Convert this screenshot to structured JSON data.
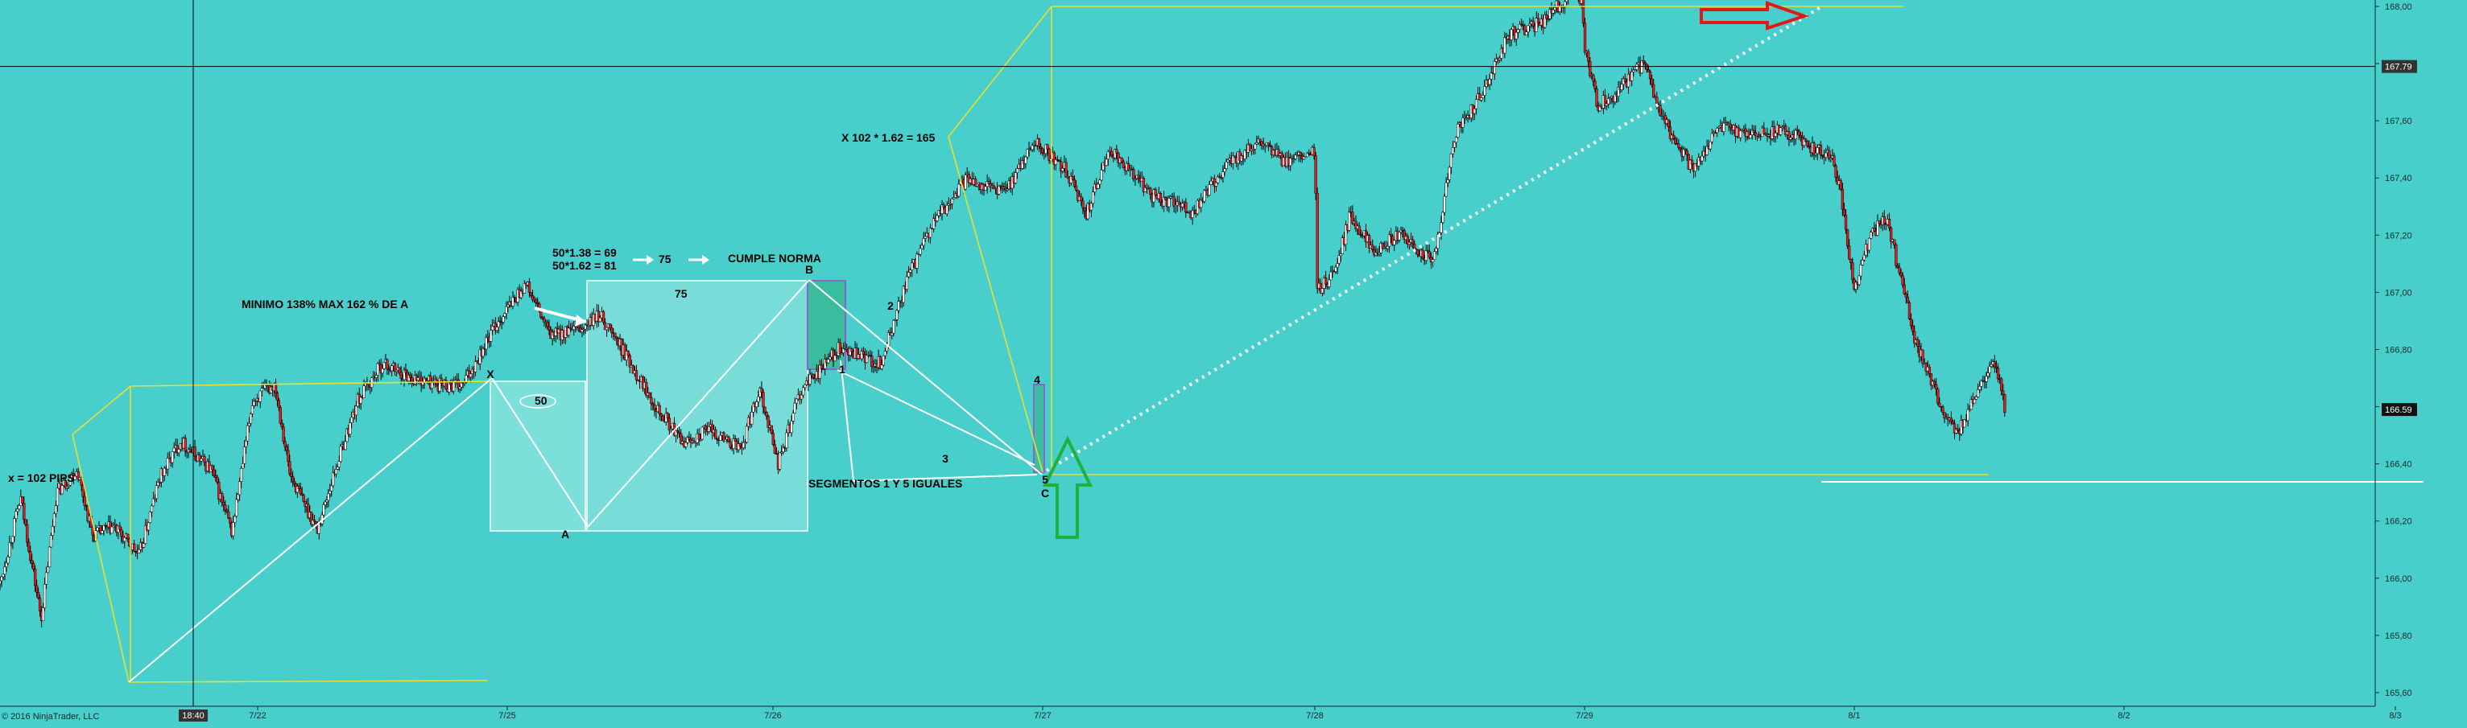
{
  "app": {
    "copyright": "© 2016 NinjaTrader, LLC",
    "crosshair_time": "18:40",
    "crosshair_price": "167.79",
    "last_price": "166.59"
  },
  "colors": {
    "background": "#48cfcc",
    "candle_up": "#ffffff",
    "candle_down": "#e02020",
    "candle_wick": "#000000",
    "annotation_line": "#ffffff",
    "fib_line": "#e8e030",
    "rect_fill": "#a8ece6",
    "rect_highlight": "#2fae7a",
    "rect_purple": "#8866cc",
    "arrow_green": "#1fb040",
    "arrow_red": "#e01818",
    "crosshair": "#000000",
    "axis_text": "#0a2a2a"
  },
  "chart_data": {
    "type": "candlestick",
    "title": "",
    "xlabel": "",
    "ylabel": "",
    "ylim": [
      165.59,
      168.08
    ],
    "y_ticks": [
      "168,00",
      "167,80",
      "167,60",
      "167,40",
      "167,20",
      "167,00",
      "166,80",
      "166,60",
      "166,40",
      "166,20",
      "166,00",
      "165,80",
      "165,60"
    ],
    "x_ticks": [
      "7/22",
      "7/25",
      "7/26",
      "7/27",
      "7/28",
      "7/29",
      "8/1",
      "8/2",
      "8/3"
    ],
    "grid": false,
    "price_path": [
      {
        "x": 0.0,
        "y": 165.98
      },
      {
        "x": 0.08,
        "y": 166.28
      },
      {
        "x": 0.16,
        "y": 165.86
      },
      {
        "x": 0.22,
        "y": 166.3
      },
      {
        "x": 0.3,
        "y": 166.38
      },
      {
        "x": 0.36,
        "y": 166.15
      },
      {
        "x": 0.44,
        "y": 166.18
      },
      {
        "x": 0.54,
        "y": 166.08
      },
      {
        "x": 0.62,
        "y": 166.35
      },
      {
        "x": 0.7,
        "y": 166.48
      },
      {
        "x": 0.82,
        "y": 166.38
      },
      {
        "x": 0.9,
        "y": 166.16
      },
      {
        "x": 0.98,
        "y": 166.62
      },
      {
        "x": 1.07,
        "y": 166.68
      },
      {
        "x": 1.13,
        "y": 166.36
      },
      {
        "x": 1.24,
        "y": 166.17
      },
      {
        "x": 1.3,
        "y": 166.35
      },
      {
        "x": 1.4,
        "y": 166.62
      },
      {
        "x": 1.5,
        "y": 166.75
      },
      {
        "x": 1.62,
        "y": 166.7
      },
      {
        "x": 1.72,
        "y": 166.68
      },
      {
        "x": 1.82,
        "y": 166.67
      },
      {
        "x": 1.95,
        "y": 166.88
      },
      {
        "x": 2.07,
        "y": 167.03
      },
      {
        "x": 2.16,
        "y": 166.85
      },
      {
        "x": 2.28,
        "y": 166.87
      },
      {
        "x": 2.35,
        "y": 166.92
      },
      {
        "x": 2.42,
        "y": 166.82
      },
      {
        "x": 2.55,
        "y": 166.62
      },
      {
        "x": 2.66,
        "y": 166.47
      },
      {
        "x": 2.76,
        "y": 166.52
      },
      {
        "x": 2.88,
        "y": 166.45
      },
      {
        "x": 2.95,
        "y": 166.67
      },
      {
        "x": 3.02,
        "y": 166.4
      },
      {
        "x": 3.1,
        "y": 166.65
      },
      {
        "x": 3.24,
        "y": 166.8
      },
      {
        "x": 3.4,
        "y": 166.75
      },
      {
        "x": 3.5,
        "y": 167.05
      },
      {
        "x": 3.6,
        "y": 167.25
      },
      {
        "x": 3.72,
        "y": 167.4
      },
      {
        "x": 3.86,
        "y": 167.35
      },
      {
        "x": 3.97,
        "y": 167.53
      },
      {
        "x": 4.08,
        "y": 167.43
      },
      {
        "x": 4.16,
        "y": 167.28
      },
      {
        "x": 4.25,
        "y": 167.5
      },
      {
        "x": 4.4,
        "y": 167.34
      },
      {
        "x": 4.55,
        "y": 167.28
      },
      {
        "x": 4.68,
        "y": 167.45
      },
      {
        "x": 4.8,
        "y": 167.52
      },
      {
        "x": 4.9,
        "y": 167.45
      },
      {
        "x": 5.0,
        "y": 167.49
      },
      {
        "x": 5.01,
        "y": 167.0
      },
      {
        "x": 5.08,
        "y": 167.08
      },
      {
        "x": 5.13,
        "y": 167.27
      },
      {
        "x": 5.22,
        "y": 167.15
      },
      {
        "x": 5.32,
        "y": 167.2
      },
      {
        "x": 5.44,
        "y": 167.1
      },
      {
        "x": 5.52,
        "y": 167.55
      },
      {
        "x": 5.62,
        "y": 167.7
      },
      {
        "x": 5.72,
        "y": 167.9
      },
      {
        "x": 5.85,
        "y": 167.95
      },
      {
        "x": 5.95,
        "y": 168.05
      },
      {
        "x": 5.99,
        "y": 168.03
      },
      {
        "x": 6.0,
        "y": 167.85
      },
      {
        "x": 6.05,
        "y": 167.65
      },
      {
        "x": 6.12,
        "y": 167.7
      },
      {
        "x": 6.22,
        "y": 167.8
      },
      {
        "x": 6.28,
        "y": 167.62
      },
      {
        "x": 6.4,
        "y": 167.43
      },
      {
        "x": 6.5,
        "y": 167.58
      },
      {
        "x": 6.62,
        "y": 167.55
      },
      {
        "x": 6.74,
        "y": 167.57
      },
      {
        "x": 6.92,
        "y": 167.46
      },
      {
        "x": 6.95,
        "y": 167.35
      },
      {
        "x": 7.0,
        "y": 167.0
      },
      {
        "x": 7.06,
        "y": 167.2
      },
      {
        "x": 7.12,
        "y": 167.26
      },
      {
        "x": 7.22,
        "y": 166.85
      },
      {
        "x": 7.32,
        "y": 166.6
      },
      {
        "x": 7.38,
        "y": 166.5
      },
      {
        "x": 7.46,
        "y": 166.65
      },
      {
        "x": 7.52,
        "y": 166.75
      },
      {
        "x": 7.56,
        "y": 166.59
      }
    ],
    "last_price": 166.59,
    "crosshair": {
      "price": 167.79,
      "time": "18:40"
    },
    "labels": [
      {
        "text": "x = 102 PIPS"
      },
      {
        "text": "MINIMO 138% MAX 162 % DE  A"
      },
      {
        "text": "50*1.38 = 69"
      },
      {
        "text": "50*1.62 = 81"
      },
      {
        "text": "75"
      },
      {
        "text": "CUMPLE NORMA"
      },
      {
        "text": "75"
      },
      {
        "text": "50"
      },
      {
        "text": "X 102 * 1.62 =  165"
      },
      {
        "text": "SEGMENTOS 1 Y 5 IGUALES"
      },
      {
        "text": "X"
      },
      {
        "text": "A"
      },
      {
        "text": "B"
      },
      {
        "text": "C"
      },
      {
        "text": "1"
      },
      {
        "text": "2"
      },
      {
        "text": "3"
      },
      {
        "text": "4"
      },
      {
        "text": "5"
      }
    ]
  }
}
